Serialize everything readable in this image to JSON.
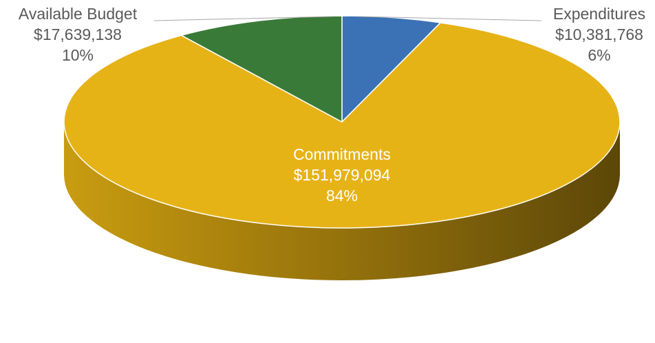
{
  "chart_data": {
    "type": "pie",
    "style": "3d",
    "categories": [
      "Expenditures",
      "Commitments",
      "Available Budget"
    ],
    "values": [
      10381768,
      151979094,
      17639138
    ],
    "value_labels": [
      "$10,381,768",
      "$151,979,094",
      "$17,639,138"
    ],
    "percent_labels": [
      "6%",
      "84%",
      "10%"
    ],
    "colors": [
      "#3b72b5",
      "#e6b317",
      "#3a7a38"
    ],
    "title": "",
    "legend": "none"
  }
}
